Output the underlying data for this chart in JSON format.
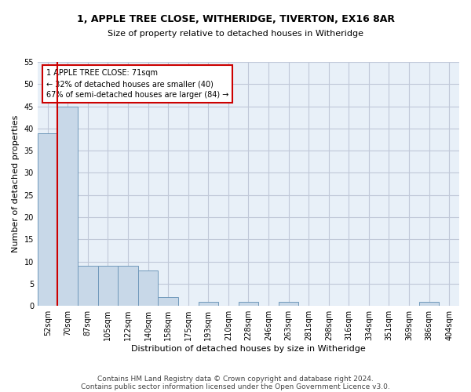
{
  "title_line1": "1, APPLE TREE CLOSE, WITHERIDGE, TIVERTON, EX16 8AR",
  "title_line2": "Size of property relative to detached houses in Witheridge",
  "xlabel": "Distribution of detached houses by size in Witheridge",
  "ylabel": "Number of detached properties",
  "bin_labels": [
    "52sqm",
    "70sqm",
    "87sqm",
    "105sqm",
    "122sqm",
    "140sqm",
    "158sqm",
    "175sqm",
    "193sqm",
    "210sqm",
    "228sqm",
    "246sqm",
    "263sqm",
    "281sqm",
    "298sqm",
    "316sqm",
    "334sqm",
    "351sqm",
    "369sqm",
    "386sqm",
    "404sqm"
  ],
  "bar_heights": [
    39,
    45,
    9,
    9,
    9,
    8,
    2,
    0,
    1,
    0,
    1,
    0,
    1,
    0,
    0,
    0,
    0,
    0,
    0,
    1,
    0
  ],
  "bar_color": "#c8d8e8",
  "bar_edge_color": "#7099bb",
  "grid_color": "#c0c8d8",
  "background_color": "#e8f0f8",
  "annotation_line1": "1 APPLE TREE CLOSE: 71sqm",
  "annotation_line2": "← 32% of detached houses are smaller (40)",
  "annotation_line3": "67% of semi-detached houses are larger (84) →",
  "annotation_box_color": "#cc0000",
  "redline_bin_index": 1,
  "ylim": [
    0,
    55
  ],
  "yticks": [
    0,
    5,
    10,
    15,
    20,
    25,
    30,
    35,
    40,
    45,
    50,
    55
  ],
  "footnote_line1": "Contains HM Land Registry data © Crown copyright and database right 2024.",
  "footnote_line2": "Contains public sector information licensed under the Open Government Licence v3.0.",
  "title1_fontsize": 9,
  "title2_fontsize": 8,
  "ylabel_fontsize": 8,
  "xlabel_fontsize": 8,
  "tick_fontsize": 7,
  "footnote_fontsize": 6.5
}
